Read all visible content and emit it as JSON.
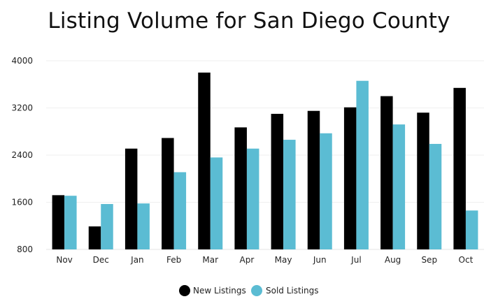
{
  "chart_data": {
    "type": "bar",
    "title": "Listing Volume for San Diego County",
    "xlabel": "",
    "ylabel": "",
    "categories": [
      "Nov",
      "Dec",
      "Jan",
      "Feb",
      "Mar",
      "Apr",
      "May",
      "Jun",
      "Jul",
      "Aug",
      "Sep",
      "Oct"
    ],
    "series": [
      {
        "name": "New Listings",
        "color": "#000000",
        "values": [
          1720,
          1190,
          2510,
          2690,
          3800,
          2870,
          3100,
          3150,
          3210,
          3400,
          3120,
          3540
        ]
      },
      {
        "name": "Sold Listings",
        "color": "#5bbcd3",
        "values": [
          1710,
          1570,
          1580,
          2110,
          2360,
          2510,
          2660,
          2770,
          3660,
          2920,
          2590,
          1460
        ]
      }
    ],
    "ylim": [
      800,
      4000
    ],
    "yticks": [
      "800",
      "1600",
      "2400",
      "3200",
      "4000"
    ],
    "grid": true,
    "legend_position": "bottom-center"
  }
}
